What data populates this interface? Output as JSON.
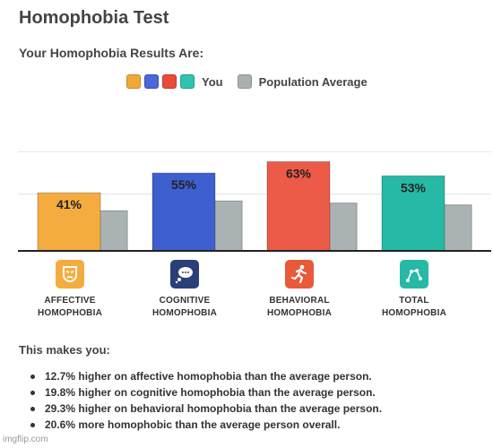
{
  "page": {
    "title": "Homophobia Test",
    "subtitle": "Your Homophobia Results Are:",
    "watermark": "imgflip.com"
  },
  "legend": {
    "you_label": "You",
    "population_label": "Population Average",
    "you_colors": [
      "#f2a838",
      "#4a68d8",
      "#e84c3d",
      "#2ec4b0"
    ],
    "population_color": "#a8b0b0"
  },
  "chart_data": {
    "type": "bar",
    "categories": [
      "AFFECTIVE HOMOPHOBIA",
      "COGNITIVE HOMOPHOBIA",
      "BEHAVIORAL HOMOPHOBIA",
      "TOTAL HOMOPHOBIA"
    ],
    "series": [
      {
        "name": "You",
        "values": [
          41,
          55,
          63,
          53
        ],
        "labels": [
          "41%",
          "55%",
          "63%",
          "53%"
        ],
        "colors": [
          "#f5ac3f",
          "#3e5fcf",
          "#ec5a48",
          "#26b9a5"
        ]
      },
      {
        "name": "Population Average",
        "values": [
          28.3,
          35.2,
          33.7,
          32.4
        ],
        "colors": [
          "#aab3b3",
          "#aab3b3",
          "#aab3b3",
          "#aab3b3"
        ]
      }
    ],
    "ylim": [
      0,
      100
    ],
    "grid": true
  },
  "categories_display": [
    {
      "label": "AFFECTIVE\nHOMOPHOBIA",
      "icon": "mask-icon",
      "icon_color": "#f5ac3f"
    },
    {
      "label": "COGNITIVE\nHOMOPHOBIA",
      "icon": "thought-bubble-icon",
      "icon_color": "#2a3f7a"
    },
    {
      "label": "BEHAVIORAL\nHOMOPHOBIA",
      "icon": "running-person-icon",
      "icon_color": "#e85a3a"
    },
    {
      "label": "TOTAL\nHOMOPHOBIA",
      "icon": "constellation-icon",
      "icon_color": "#26b9a5"
    }
  ],
  "summary": {
    "heading": "This makes you:",
    "items": [
      "12.7% higher on affective homophobia than the average person.",
      "19.8% higher on cognitive homophobia than the average person.",
      "29.3% higher on behavioral homophobia than the average person.",
      "20.6% more homophobic than the average person overall."
    ]
  }
}
